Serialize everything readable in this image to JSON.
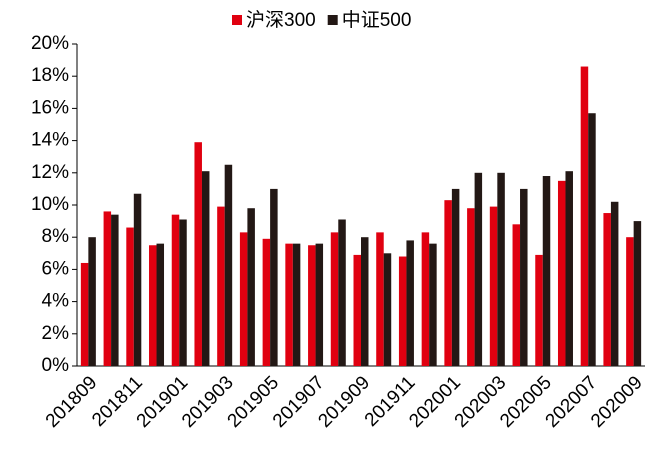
{
  "chart_data": {
    "type": "bar",
    "categories": [
      "201809",
      null,
      "201811",
      null,
      "201901",
      null,
      "201903",
      null,
      "201905",
      null,
      "201907",
      null,
      "201909",
      null,
      "201911",
      null,
      "202001",
      null,
      "202003",
      null,
      "202005",
      null,
      "202007",
      null,
      "202009"
    ],
    "series": [
      {
        "name": "沪深300",
        "color": "#e00010",
        "values": [
          6.4,
          9.6,
          8.6,
          7.5,
          9.4,
          13.9,
          9.9,
          8.3,
          7.9,
          7.6,
          7.5,
          8.3,
          6.9,
          8.3,
          6.8,
          8.3,
          10.3,
          9.8,
          9.9,
          8.8,
          6.9,
          11.5,
          18.6,
          9.5,
          8.0
        ]
      },
      {
        "name": "中证500",
        "color": "#231815",
        "values": [
          8.0,
          9.4,
          10.7,
          7.6,
          9.1,
          12.1,
          12.5,
          9.8,
          11.0,
          7.6,
          7.6,
          9.1,
          8.0,
          7.0,
          7.8,
          7.6,
          11.0,
          12.0,
          12.0,
          11.0,
          11.8,
          12.1,
          15.7,
          10.2,
          9.0
        ]
      }
    ],
    "ylim": [
      0,
      20
    ],
    "yticks": [
      {
        "value": 0,
        "label": "0%"
      },
      {
        "value": 2,
        "label": "2%"
      },
      {
        "value": 4,
        "label": "4%"
      },
      {
        "value": 6,
        "label": "6%"
      },
      {
        "value": 8,
        "label": "8%"
      },
      {
        "value": 10,
        "label": "10%"
      },
      {
        "value": 12,
        "label": "12%"
      },
      {
        "value": 14,
        "label": "14%"
      },
      {
        "value": 16,
        "label": "16%"
      },
      {
        "value": 18,
        "label": "18%"
      },
      {
        "value": 20,
        "label": "20%"
      }
    ],
    "legend": "top"
  }
}
